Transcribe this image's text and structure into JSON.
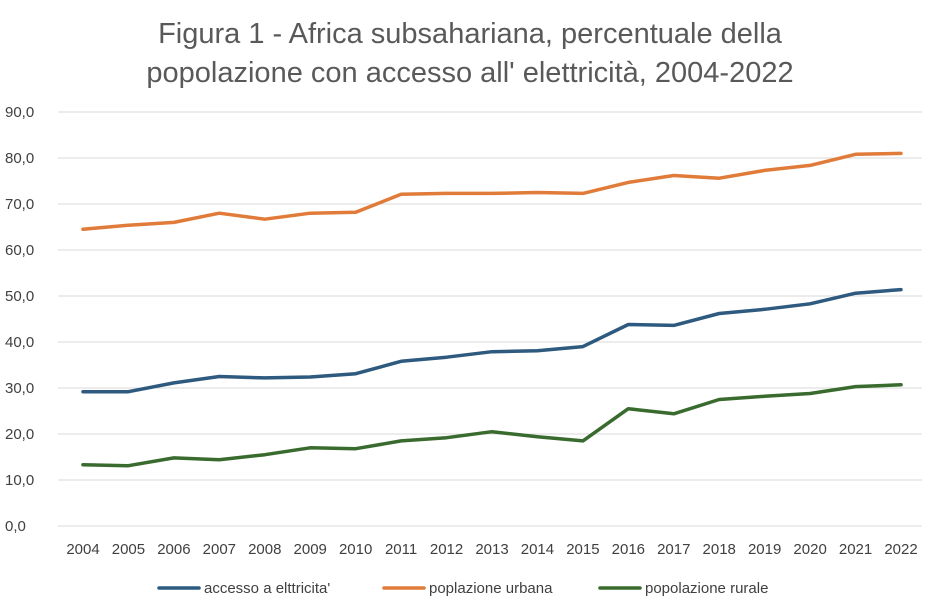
{
  "chart_data": {
    "type": "line",
    "title_lines": [
      "Figura 1 - Africa subsahariana, percentuale della",
      "popolazione con accesso all' elettricità, 2004-2022"
    ],
    "xlabel": "",
    "ylabel": "",
    "x": [
      "2004",
      "2005",
      "2006",
      "2007",
      "2008",
      "2009",
      "2010",
      "2011",
      "2012",
      "2013",
      "2014",
      "2015",
      "2016",
      "2017",
      "2018",
      "2019",
      "2020",
      "2021",
      "2022"
    ],
    "ylim": [
      0,
      90
    ],
    "yticks": [
      "0,0",
      "10,0",
      "20,0",
      "30,0",
      "40,0",
      "50,0",
      "60,0",
      "70,0",
      "80,0",
      "90,0"
    ],
    "grid": true,
    "legend_position": "bottom",
    "series": [
      {
        "name": "accesso a elttricita'",
        "color": "#2e5a7f",
        "values": [
          29.2,
          29.2,
          31.1,
          32.5,
          32.2,
          32.4,
          33.1,
          35.8,
          36.7,
          37.9,
          38.1,
          39.0,
          43.8,
          43.6,
          46.2,
          47.1,
          48.3,
          50.6,
          51.4
        ]
      },
      {
        "name": "poplazione urbana",
        "color": "#e07b39",
        "values": [
          64.5,
          65.4,
          66.0,
          68.0,
          66.7,
          68.0,
          68.2,
          72.1,
          72.3,
          72.3,
          72.5,
          72.3,
          74.7,
          76.2,
          75.6,
          77.3,
          78.4,
          80.8,
          81.0
        ]
      },
      {
        "name": "popolazione rurale",
        "color": "#3a6b2e",
        "values": [
          13.3,
          13.1,
          14.8,
          14.4,
          15.5,
          17.0,
          16.8,
          18.5,
          19.2,
          20.5,
          19.4,
          18.5,
          25.5,
          24.4,
          27.5,
          28.2,
          28.8,
          30.3,
          30.7
        ]
      }
    ]
  }
}
